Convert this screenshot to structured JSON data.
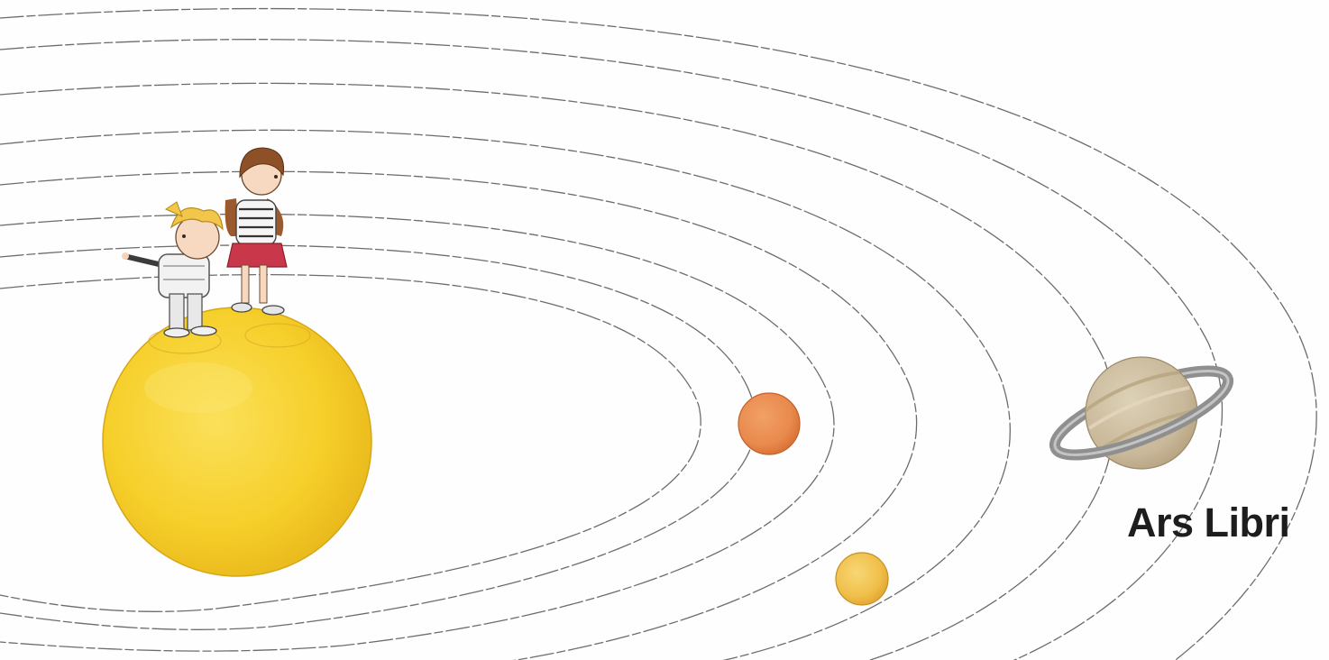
{
  "brand": {
    "name": "Ars Libri",
    "color": "#1d1d1d"
  },
  "colors": {
    "background": "#fefefe",
    "orbit_line": "#6c6c6c",
    "sun": "#f6cf2a",
    "red_planet": "#e98a4e",
    "small_planet": "#f0bf4a",
    "ringed_planet": "#c9b89a",
    "planet_ring": "#8f8f8f"
  },
  "icons": {
    "sun": "sun-planet-icon",
    "red_planet": "red-planet-icon",
    "small_planet": "small-planet-icon",
    "ringed_planet": "ringed-planet-icon",
    "boy": "boy-figure",
    "girl": "girl-figure"
  }
}
